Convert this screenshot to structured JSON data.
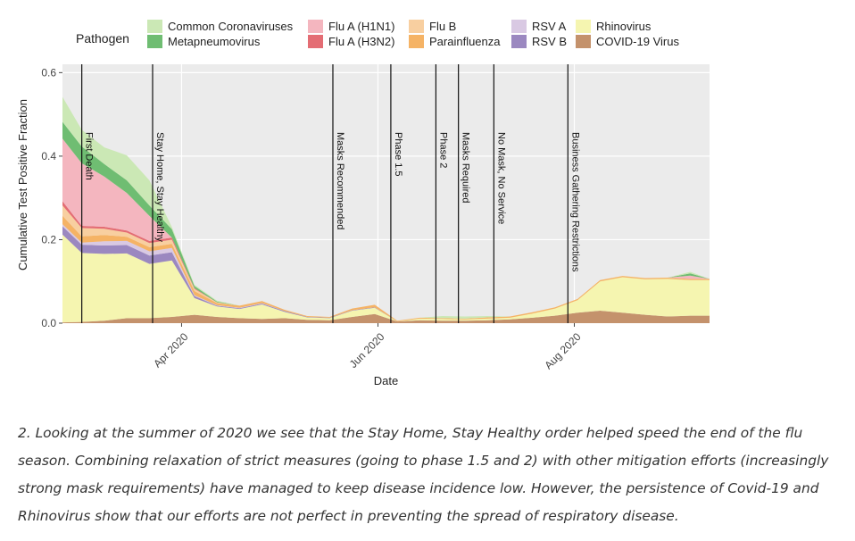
{
  "chart_data": {
    "type": "area",
    "stacked": true,
    "xlabel": "Date",
    "ylabel": "Cumulative Test Positive Fraction",
    "ylim": [
      0,
      0.62
    ],
    "yticks": [
      "0.0",
      "0.2",
      "0.4",
      "0.6"
    ],
    "xticks": [
      {
        "label": "Apr 2020",
        "date": "2020-04-01"
      },
      {
        "label": "Jun 2020",
        "date": "2020-06-01"
      },
      {
        "label": "Aug 2020",
        "date": "2020-08-01"
      }
    ],
    "xlim": [
      "2020-02-24",
      "2020-09-12"
    ],
    "grid": true,
    "legend": {
      "title": "Pathogen",
      "position": "top"
    },
    "dates": [
      "2020-02-24",
      "2020-03-01",
      "2020-03-08",
      "2020-03-15",
      "2020-03-22",
      "2020-03-29",
      "2020-04-05",
      "2020-04-12",
      "2020-04-19",
      "2020-04-26",
      "2020-05-03",
      "2020-05-10",
      "2020-05-17",
      "2020-05-24",
      "2020-05-31",
      "2020-06-07",
      "2020-06-14",
      "2020-06-21",
      "2020-06-28",
      "2020-07-05",
      "2020-07-12",
      "2020-07-19",
      "2020-07-26",
      "2020-08-02",
      "2020-08-09",
      "2020-08-16",
      "2020-08-23",
      "2020-08-30",
      "2020-09-06",
      "2020-09-12"
    ],
    "series": [
      {
        "name": "COVID-19 Virus",
        "color": "#c4926c",
        "values": [
          0.002,
          0.003,
          0.006,
          0.012,
          0.012,
          0.015,
          0.02,
          0.015,
          0.012,
          0.01,
          0.012,
          0.008,
          0.007,
          0.015,
          0.022,
          0.004,
          0.007,
          0.006,
          0.006,
          0.007,
          0.009,
          0.013,
          0.018,
          0.025,
          0.03,
          0.025,
          0.02,
          0.016,
          0.018,
          0.018
        ]
      },
      {
        "name": "Rhinovirus",
        "color": "#f5f5b0",
        "values": [
          0.21,
          0.165,
          0.16,
          0.155,
          0.13,
          0.135,
          0.04,
          0.025,
          0.022,
          0.035,
          0.015,
          0.006,
          0.005,
          0.015,
          0.015,
          0.0,
          0.004,
          0.004,
          0.003,
          0.004,
          0.004,
          0.01,
          0.017,
          0.03,
          0.07,
          0.085,
          0.085,
          0.09,
          0.085,
          0.085
        ]
      },
      {
        "name": "RSV B",
        "color": "#9b88c0",
        "values": [
          0.02,
          0.02,
          0.02,
          0.02,
          0.02,
          0.02,
          0.005,
          0.002,
          0.002,
          0.002,
          0.002,
          0.001,
          0.001,
          0.001,
          0.001,
          0.0,
          0.0,
          0.0,
          0.0,
          0.0,
          0.0,
          0.0,
          0.0,
          0.0,
          0.0,
          0.0,
          0.0,
          0.0,
          0.0,
          0.0
        ]
      },
      {
        "name": "RSV A",
        "color": "#d9c9e3",
        "values": [
          0.005,
          0.005,
          0.01,
          0.01,
          0.01,
          0.01,
          0.002,
          0.001,
          0.001,
          0.001,
          0.0,
          0.0,
          0.0,
          0.0,
          0.0,
          0.0,
          0.0,
          0.0,
          0.0,
          0.0,
          0.0,
          0.0,
          0.0,
          0.0,
          0.0,
          0.0,
          0.0,
          0.0,
          0.0,
          0.0
        ]
      },
      {
        "name": "Parainfluenza",
        "color": "#f5b365",
        "values": [
          0.02,
          0.015,
          0.015,
          0.01,
          0.01,
          0.01,
          0.01,
          0.005,
          0.005,
          0.005,
          0.003,
          0.002,
          0.002,
          0.004,
          0.006,
          0.002,
          0.002,
          0.002,
          0.002,
          0.003,
          0.003,
          0.003,
          0.003,
          0.003,
          0.003,
          0.003,
          0.003,
          0.003,
          0.003,
          0.003
        ]
      },
      {
        "name": "Flu B",
        "color": "#f8cfa0",
        "values": [
          0.025,
          0.02,
          0.015,
          0.01,
          0.01,
          0.01,
          0.005,
          0.002,
          0.0,
          0.0,
          0.0,
          0.0,
          0.0,
          0.0,
          0.0,
          0.0,
          0.0,
          0.0,
          0.0,
          0.0,
          0.0,
          0.0,
          0.0,
          0.0,
          0.0,
          0.0,
          0.0,
          0.0,
          0.0,
          0.0
        ]
      },
      {
        "name": "Flu A (H3N2)",
        "color": "#e46d74",
        "values": [
          0.01,
          0.005,
          0.005,
          0.005,
          0.005,
          0.005,
          0.002,
          0.0,
          0.0,
          0.0,
          0.0,
          0.0,
          0.0,
          0.0,
          0.0,
          0.0,
          0.0,
          0.0,
          0.0,
          0.0,
          0.0,
          0.0,
          0.0,
          0.0,
          0.0,
          0.0,
          0.0,
          0.0,
          0.0,
          0.0
        ]
      },
      {
        "name": "Flu A (H1N1)",
        "color": "#f4b6bf",
        "values": [
          0.15,
          0.15,
          0.12,
          0.09,
          0.06,
          0.0,
          0.0,
          0.0,
          0.0,
          0.0,
          0.0,
          0.0,
          0.0,
          0.0,
          0.0,
          0.0,
          0.0,
          0.0,
          0.0,
          0.0,
          0.0,
          0.0,
          0.0,
          0.0,
          0.0,
          0.0,
          0.0,
          0.0,
          0.008,
          0.0
        ]
      },
      {
        "name": "Metapneumovirus",
        "color": "#6fbd72",
        "values": [
          0.04,
          0.04,
          0.03,
          0.03,
          0.025,
          0.02,
          0.005,
          0.002,
          0.0,
          0.0,
          0.0,
          0.0,
          0.0,
          0.0,
          0.0,
          0.0,
          0.0,
          0.0,
          0.0,
          0.0,
          0.0,
          0.0,
          0.0,
          0.0,
          0.0,
          0.0,
          0.0,
          0.0,
          0.005,
          0.0
        ]
      },
      {
        "name": "Common Coronaviruses",
        "color": "#cbe8b5",
        "values": [
          0.06,
          0.04,
          0.04,
          0.06,
          0.06,
          0.005,
          0.003,
          0.002,
          0.0,
          0.0,
          0.0,
          0.0,
          0.0,
          0.0,
          0.0,
          0.0,
          0.0,
          0.005,
          0.005,
          0.003,
          0.0,
          0.0,
          0.0,
          0.0,
          0.0,
          0.0,
          0.0,
          0.0,
          0.004,
          0.0
        ]
      }
    ],
    "legend_rows": [
      [
        "Common Coronaviruses",
        "Flu A (H1N1)",
        "Flu B",
        "RSV A",
        "Rhinovirus"
      ],
      [
        "Metapneumovirus",
        "Flu A (H3N2)",
        "Parainfluenza",
        "RSV B",
        "COVID-19 Virus"
      ]
    ],
    "events": [
      {
        "date": "2020-03-01",
        "label": "First Death"
      },
      {
        "date": "2020-03-23",
        "label": "Stay Home, Stay Healthy"
      },
      {
        "date": "2020-05-18",
        "label": "Masks Recommended"
      },
      {
        "date": "2020-06-05",
        "label": "Phase 1.5"
      },
      {
        "date": "2020-06-19",
        "label": "Phase 2"
      },
      {
        "date": "2020-06-26",
        "label": "Masks Required"
      },
      {
        "date": "2020-07-07",
        "label": "No Mask, No Service"
      },
      {
        "date": "2020-07-30",
        "label": "Business Gathering Restrictions"
      }
    ]
  },
  "caption": "2. Looking at the summer of 2020 we see that the Stay Home, Stay Healthy order helped speed the end of the flu season. Combining relaxation of strict measures (going to phase 1.5 and 2) with other mitigation efforts (increasingly strong mask requirements) have managed to keep disease incidence low. However, the persistence of Covid-19 and Rhinovirus show that our efforts are not perfect in preventing the spread of respiratory disease."
}
